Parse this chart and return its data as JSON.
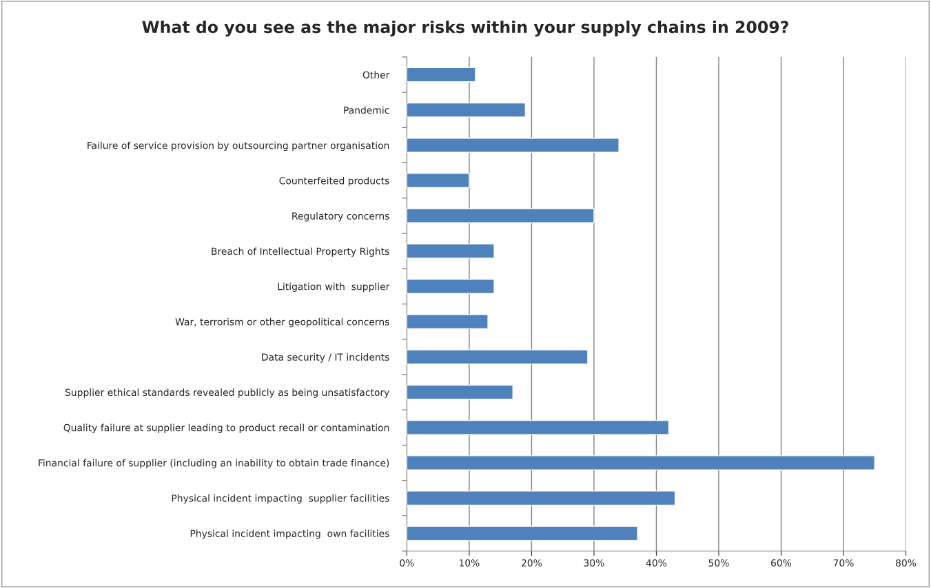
{
  "chart_data": {
    "type": "bar",
    "orientation": "horizontal",
    "title": "What do you see as the major risks within your supply chains in 2009?",
    "categories": [
      "Other",
      "Pandemic",
      "Failure of service provision by outsourcing partner organisation",
      "Counterfeited products",
      "Regulatory concerns",
      "Breach of Intellectual Property Rights",
      "Litigation with  supplier",
      "War, terrorism or other geopolitical concerns",
      "Data security / IT incidents",
      "Supplier ethical standards revealed publicly as being unsatisfactory",
      "Quality failure at supplier leading to product recall or contamination",
      "Financial failure of supplier (including an inability to obtain trade finance)",
      "Physical incident impacting  supplier facilities",
      "Physical incident impacting  own facilities"
    ],
    "values": [
      11,
      19,
      34,
      10,
      30,
      14,
      14,
      13,
      29,
      17,
      42,
      75,
      43,
      37
    ],
    "color": "#4f81bd",
    "xlim": [
      0,
      80
    ],
    "xticks": [
      {
        "value": 0,
        "label": "0%"
      },
      {
        "value": 10,
        "label": "10%"
      },
      {
        "value": 20,
        "label": "20%"
      },
      {
        "value": 30,
        "label": "30%"
      },
      {
        "value": 40,
        "label": "40%"
      },
      {
        "value": 50,
        "label": "50%"
      },
      {
        "value": 60,
        "label": "60%"
      },
      {
        "value": 70,
        "label": "70%"
      },
      {
        "value": 80,
        "label": "80%"
      }
    ],
    "grid": "x",
    "legend": false
  }
}
